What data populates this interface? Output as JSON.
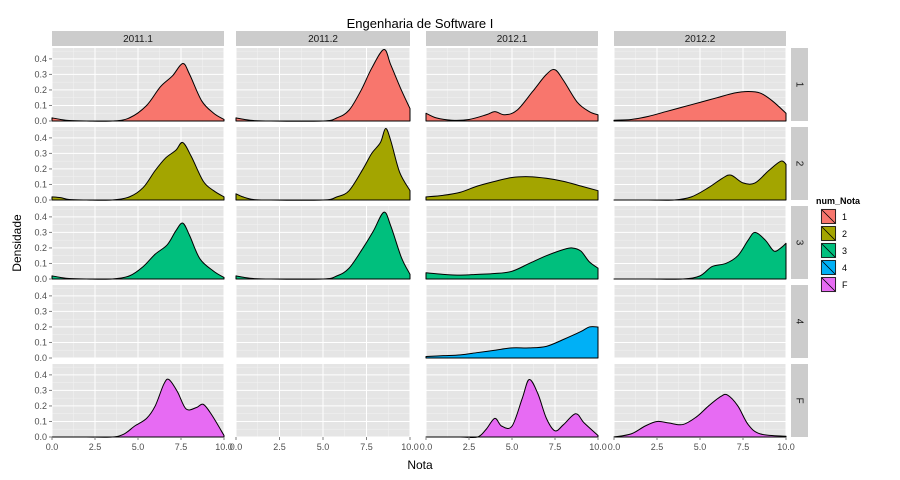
{
  "chart_data": {
    "type": "area",
    "title": "Engenharia de Software I",
    "xlabel": "Nota",
    "ylabel": "Densidade",
    "xlim": [
      0,
      10
    ],
    "ylim": [
      0,
      0.47
    ],
    "x_ticks": [
      "0.0",
      "2.5",
      "5.0",
      "7.5",
      "10.0"
    ],
    "y_ticks": [
      "0.0",
      "0.1",
      "0.2",
      "0.3",
      "0.4"
    ],
    "grid": true,
    "legend_position": "right",
    "col_facets": [
      "2011.1",
      "2011.2",
      "2012.1",
      "2012.2"
    ],
    "row_facets": [
      "1",
      "2",
      "3",
      "4",
      "F"
    ],
    "legend": {
      "title": "num_Nota",
      "entries": [
        {
          "label": "1",
          "color": "#F8766D"
        },
        {
          "label": "2",
          "color": "#A3A500"
        },
        {
          "label": "3",
          "color": "#00BF7D"
        },
        {
          "label": "4",
          "color": "#00B0F6"
        },
        {
          "label": "F",
          "color": "#E76BF3"
        }
      ]
    },
    "panels": [
      {
        "row": "1",
        "col": "2011.1",
        "fill": "#F8766D",
        "points": [
          [
            0,
            0.02
          ],
          [
            0.5,
            0.01
          ],
          [
            1,
            0.003
          ],
          [
            2,
            0
          ],
          [
            3.5,
            0
          ],
          [
            4.5,
            0.02
          ],
          [
            5.5,
            0.1
          ],
          [
            6.3,
            0.22
          ],
          [
            7,
            0.29
          ],
          [
            7.6,
            0.37
          ],
          [
            8,
            0.3
          ],
          [
            8.7,
            0.13
          ],
          [
            9.4,
            0.05
          ],
          [
            10,
            0.01
          ]
        ]
      },
      {
        "row": "1",
        "col": "2011.2",
        "fill": "#F8766D",
        "points": [
          [
            0,
            0.02
          ],
          [
            0.5,
            0.01
          ],
          [
            1,
            0.003
          ],
          [
            2,
            0
          ],
          [
            5,
            0
          ],
          [
            5.8,
            0.02
          ],
          [
            6.5,
            0.07
          ],
          [
            7.2,
            0.2
          ],
          [
            7.8,
            0.34
          ],
          [
            8.5,
            0.46
          ],
          [
            8.9,
            0.36
          ],
          [
            9.5,
            0.2
          ],
          [
            10,
            0.08
          ]
        ]
      },
      {
        "row": "1",
        "col": "2012.1",
        "fill": "#F8766D",
        "points": [
          [
            0,
            0.05
          ],
          [
            0.6,
            0.02
          ],
          [
            1.5,
            0.005
          ],
          [
            2.5,
            0.01
          ],
          [
            3.5,
            0.04
          ],
          [
            4,
            0.06
          ],
          [
            4.6,
            0.04
          ],
          [
            5.3,
            0.07
          ],
          [
            6.2,
            0.19
          ],
          [
            7,
            0.3
          ],
          [
            7.5,
            0.33
          ],
          [
            8,
            0.26
          ],
          [
            8.8,
            0.12
          ],
          [
            9.5,
            0.06
          ],
          [
            10,
            0.04
          ]
        ]
      },
      {
        "row": "1",
        "col": "2012.2",
        "fill": "#F8766D",
        "points": [
          [
            0,
            0.005
          ],
          [
            1,
            0.01
          ],
          [
            2,
            0.03
          ],
          [
            3,
            0.06
          ],
          [
            4,
            0.09
          ],
          [
            5,
            0.12
          ],
          [
            6,
            0.15
          ],
          [
            7,
            0.18
          ],
          [
            7.8,
            0.19
          ],
          [
            8.5,
            0.18
          ],
          [
            9.2,
            0.13
          ],
          [
            10,
            0.05
          ]
        ]
      },
      {
        "row": "2",
        "col": "2011.1",
        "fill": "#A3A500",
        "points": [
          [
            0,
            0.02
          ],
          [
            0.5,
            0.015
          ],
          [
            1,
            0.003
          ],
          [
            2,
            0
          ],
          [
            3.5,
            0
          ],
          [
            4.5,
            0.02
          ],
          [
            5.3,
            0.08
          ],
          [
            6,
            0.19
          ],
          [
            6.6,
            0.27
          ],
          [
            7.2,
            0.32
          ],
          [
            7.6,
            0.37
          ],
          [
            8.1,
            0.28
          ],
          [
            8.8,
            0.12
          ],
          [
            9.4,
            0.06
          ],
          [
            10,
            0.02
          ]
        ]
      },
      {
        "row": "2",
        "col": "2011.2",
        "fill": "#A3A500",
        "points": [
          [
            0,
            0.04
          ],
          [
            0.4,
            0.02
          ],
          [
            1,
            0.003
          ],
          [
            2,
            0
          ],
          [
            5,
            0
          ],
          [
            5.8,
            0.02
          ],
          [
            6.5,
            0.06
          ],
          [
            7.3,
            0.2
          ],
          [
            7.8,
            0.3
          ],
          [
            8.3,
            0.37
          ],
          [
            8.6,
            0.46
          ],
          [
            8.9,
            0.38
          ],
          [
            9.4,
            0.18
          ],
          [
            10,
            0.06
          ]
        ]
      },
      {
        "row": "2",
        "col": "2012.1",
        "fill": "#A3A500",
        "points": [
          [
            0,
            0.02
          ],
          [
            1,
            0.03
          ],
          [
            2,
            0.05
          ],
          [
            3,
            0.09
          ],
          [
            4,
            0.12
          ],
          [
            5,
            0.145
          ],
          [
            6,
            0.15
          ],
          [
            7,
            0.14
          ],
          [
            8,
            0.12
          ],
          [
            9,
            0.09
          ],
          [
            10,
            0.06
          ]
        ]
      },
      {
        "row": "2",
        "col": "2012.2",
        "fill": "#A3A500",
        "points": [
          [
            0,
            0
          ],
          [
            2,
            0
          ],
          [
            3.5,
            0
          ],
          [
            4.5,
            0.02
          ],
          [
            5.5,
            0.08
          ],
          [
            6.3,
            0.14
          ],
          [
            6.8,
            0.16
          ],
          [
            7.5,
            0.11
          ],
          [
            8.2,
            0.11
          ],
          [
            9,
            0.19
          ],
          [
            9.7,
            0.25
          ],
          [
            10,
            0.23
          ]
        ]
      },
      {
        "row": "3",
        "col": "2011.1",
        "fill": "#00BF7D",
        "points": [
          [
            0,
            0.02
          ],
          [
            0.5,
            0.01
          ],
          [
            1,
            0.003
          ],
          [
            2,
            0
          ],
          [
            3.5,
            0
          ],
          [
            4.5,
            0.02
          ],
          [
            5.3,
            0.08
          ],
          [
            6,
            0.16
          ],
          [
            6.7,
            0.22
          ],
          [
            7.2,
            0.31
          ],
          [
            7.6,
            0.36
          ],
          [
            8,
            0.28
          ],
          [
            8.6,
            0.13
          ],
          [
            9.4,
            0.05
          ],
          [
            10,
            0.01
          ]
        ]
      },
      {
        "row": "3",
        "col": "2011.2",
        "fill": "#00BF7D",
        "points": [
          [
            0,
            0.02
          ],
          [
            0.5,
            0.01
          ],
          [
            1,
            0.003
          ],
          [
            2,
            0
          ],
          [
            5,
            0
          ],
          [
            5.8,
            0.02
          ],
          [
            6.5,
            0.07
          ],
          [
            7.3,
            0.2
          ],
          [
            7.9,
            0.31
          ],
          [
            8.5,
            0.43
          ],
          [
            8.9,
            0.34
          ],
          [
            9.5,
            0.14
          ],
          [
            10,
            0.03
          ]
        ]
      },
      {
        "row": "3",
        "col": "2012.1",
        "fill": "#00BF7D",
        "points": [
          [
            0,
            0.04
          ],
          [
            1,
            0.03
          ],
          [
            2,
            0.025
          ],
          [
            3,
            0.03
          ],
          [
            4,
            0.035
          ],
          [
            5,
            0.05
          ],
          [
            6,
            0.1
          ],
          [
            7,
            0.15
          ],
          [
            8,
            0.19
          ],
          [
            8.5,
            0.2
          ],
          [
            9,
            0.18
          ],
          [
            9.5,
            0.11
          ],
          [
            10,
            0.07
          ]
        ]
      },
      {
        "row": "3",
        "col": "2012.2",
        "fill": "#00BF7D",
        "points": [
          [
            0,
            0
          ],
          [
            2,
            0
          ],
          [
            4,
            0
          ],
          [
            5,
            0.02
          ],
          [
            5.7,
            0.08
          ],
          [
            6.5,
            0.1
          ],
          [
            7.2,
            0.15
          ],
          [
            7.8,
            0.25
          ],
          [
            8.2,
            0.3
          ],
          [
            8.8,
            0.25
          ],
          [
            9.3,
            0.18
          ],
          [
            9.7,
            0.2
          ],
          [
            10,
            0.23
          ]
        ]
      },
      {
        "row": "4",
        "col": "2012.1",
        "fill": "#00B0F6",
        "points": [
          [
            0,
            0.01
          ],
          [
            1,
            0.015
          ],
          [
            2,
            0.02
          ],
          [
            3,
            0.035
          ],
          [
            4,
            0.05
          ],
          [
            5,
            0.065
          ],
          [
            6,
            0.065
          ],
          [
            7,
            0.075
          ],
          [
            8,
            0.12
          ],
          [
            9,
            0.17
          ],
          [
            9.5,
            0.2
          ],
          [
            10,
            0.2
          ]
        ]
      },
      {
        "row": "F",
        "col": "2011.1",
        "fill": "#E76BF3",
        "points": [
          [
            0,
            0
          ],
          [
            2,
            0
          ],
          [
            3.5,
            0
          ],
          [
            4.2,
            0.02
          ],
          [
            4.8,
            0.07
          ],
          [
            5.5,
            0.12
          ],
          [
            6,
            0.2
          ],
          [
            6.5,
            0.34
          ],
          [
            6.8,
            0.37
          ],
          [
            7.3,
            0.29
          ],
          [
            7.8,
            0.18
          ],
          [
            8.4,
            0.19
          ],
          [
            8.8,
            0.21
          ],
          [
            9.3,
            0.14
          ],
          [
            10,
            0.01
          ]
        ]
      },
      {
        "row": "F",
        "col": "2012.1",
        "fill": "#E76BF3",
        "points": [
          [
            0,
            0
          ],
          [
            2,
            0
          ],
          [
            3,
            0
          ],
          [
            3.5,
            0.05
          ],
          [
            4,
            0.12
          ],
          [
            4.4,
            0.07
          ],
          [
            5,
            0.07
          ],
          [
            5.6,
            0.25
          ],
          [
            6,
            0.37
          ],
          [
            6.5,
            0.28
          ],
          [
            7,
            0.12
          ],
          [
            7.5,
            0.04
          ],
          [
            8,
            0.08
          ],
          [
            8.7,
            0.15
          ],
          [
            9.2,
            0.09
          ],
          [
            10,
            0.01
          ]
        ]
      },
      {
        "row": "F",
        "col": "2012.2",
        "fill": "#E76BF3",
        "points": [
          [
            0,
            0
          ],
          [
            1,
            0.02
          ],
          [
            1.8,
            0.07
          ],
          [
            2.5,
            0.1
          ],
          [
            3.2,
            0.09
          ],
          [
            4,
            0.08
          ],
          [
            4.8,
            0.13
          ],
          [
            5.5,
            0.2
          ],
          [
            6.2,
            0.26
          ],
          [
            6.6,
            0.27
          ],
          [
            7.2,
            0.2
          ],
          [
            7.8,
            0.08
          ],
          [
            8.5,
            0.02
          ],
          [
            10,
            0.005
          ]
        ]
      }
    ]
  }
}
